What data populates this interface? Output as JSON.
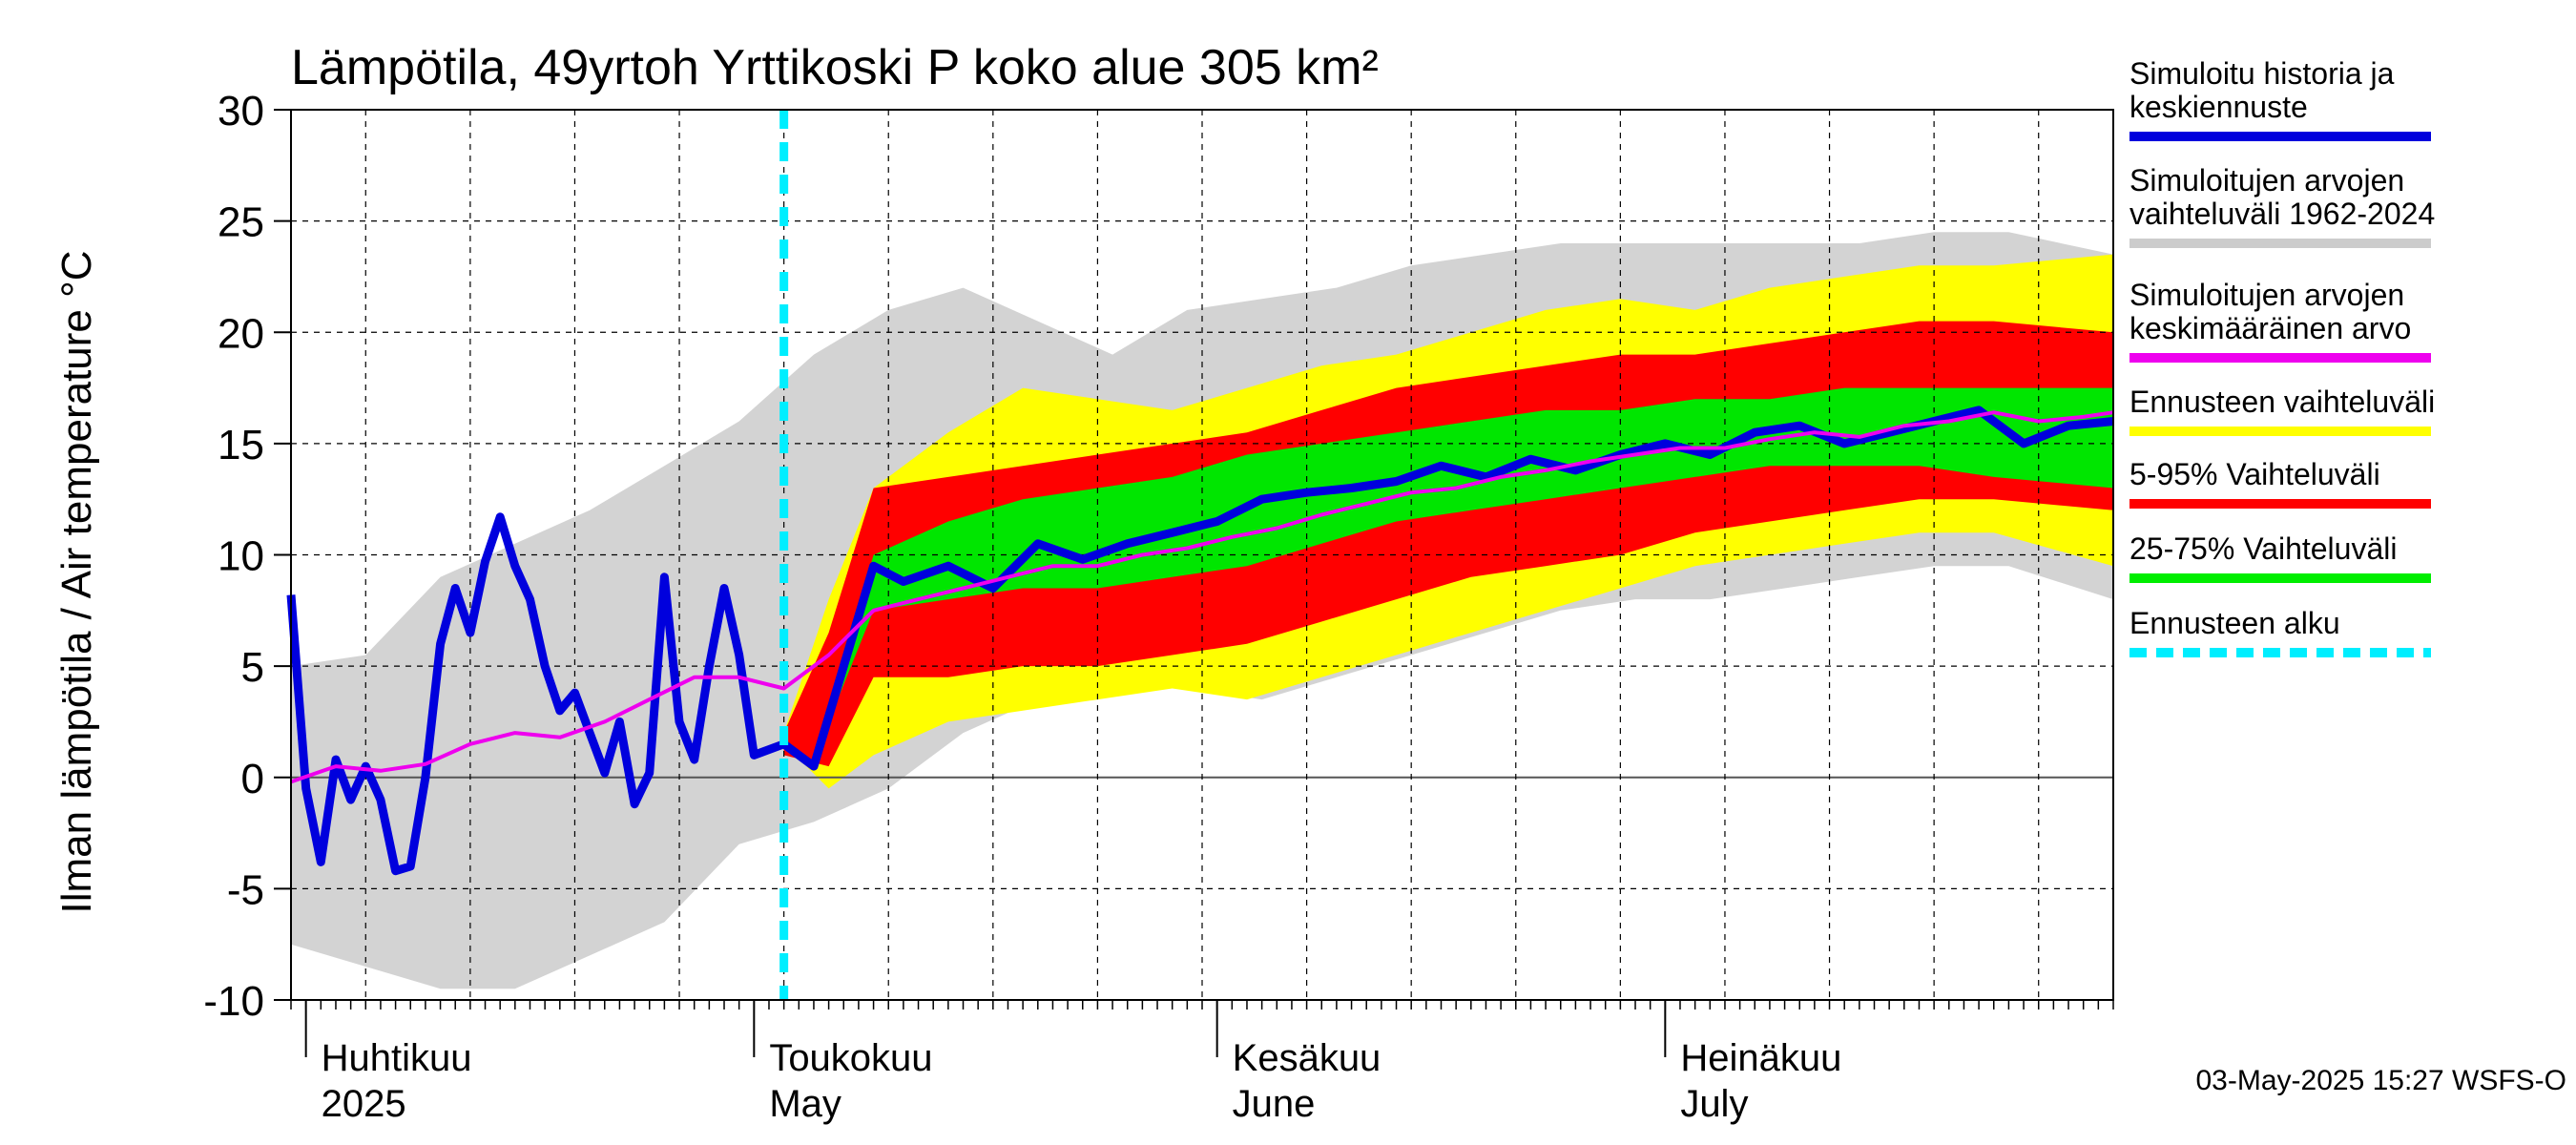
{
  "chart_data": {
    "type": "area",
    "title": "Lämpötila, 49yrtoh Yrttikoski P koko alue 305 km²",
    "ylabel": "Ilman lämpötila / Air temperature   °C",
    "ylim": [
      -10,
      30
    ],
    "yticks": [
      "30",
      "25",
      "20",
      "15",
      "10",
      "5",
      "0",
      "-5",
      "-10"
    ],
    "x_start": "2025-03-31",
    "x_end": "2025-07-31",
    "forecast_start": "2025-05-03",
    "months": [
      {
        "fi": "Huhtikuu",
        "en": "2025",
        "date": "2025-04-01"
      },
      {
        "fi": "Toukokuu",
        "en": "May",
        "date": "2025-05-01"
      },
      {
        "fi": "Kesäkuu",
        "en": "June",
        "date": "2025-06-01"
      },
      {
        "fi": "Heinäkuu",
        "en": "July",
        "date": "2025-07-01"
      }
    ],
    "legend": [
      {
        "label1": "Simuloitu historia ja",
        "label2": "keskiennuste",
        "color": "#0000dd",
        "style": "solid"
      },
      {
        "label1": "Simuloitujen arvojen",
        "label2": "vaihteluväli 1962-2024",
        "color": "#cccccc",
        "style": "solid"
      },
      {
        "label1": "Simuloitujen arvojen",
        "label2": "keskimääräinen arvo",
        "color": "#ee00ee",
        "style": "solid"
      },
      {
        "label1": "Ennusteen vaihteluväli",
        "label2": "",
        "color": "#ffff00",
        "style": "solid"
      },
      {
        "label1": "5-95% Vaihteluväli",
        "label2": "",
        "color": "#ff0000",
        "style": "solid"
      },
      {
        "label1": "25-75% Vaihteluväli",
        "label2": "",
        "color": "#00ee00",
        "style": "solid"
      },
      {
        "label1": "Ennusteen alku",
        "label2": "",
        "color": "#00eeff",
        "style": "dashed"
      }
    ],
    "timestamp": "03-May-2025 15:27 WSFS-O",
    "series": [
      {
        "name": "Simuloitu historia ja keskiennuste",
        "key": "sim",
        "x": [
          "2025-03-31",
          "2025-04-01",
          "2025-04-02",
          "2025-04-03",
          "2025-04-04",
          "2025-04-05",
          "2025-04-06",
          "2025-04-07",
          "2025-04-08",
          "2025-04-09",
          "2025-04-10",
          "2025-04-11",
          "2025-04-12",
          "2025-04-13",
          "2025-04-14",
          "2025-04-15",
          "2025-04-16",
          "2025-04-17",
          "2025-04-18",
          "2025-04-19",
          "2025-04-20",
          "2025-04-21",
          "2025-04-22",
          "2025-04-23",
          "2025-04-24",
          "2025-04-25",
          "2025-04-26",
          "2025-04-27",
          "2025-04-28",
          "2025-04-29",
          "2025-04-30",
          "2025-05-01",
          "2025-05-03",
          "2025-05-05",
          "2025-05-07",
          "2025-05-09",
          "2025-05-11",
          "2025-05-14",
          "2025-05-17",
          "2025-05-20",
          "2025-05-23",
          "2025-05-26",
          "2025-05-29",
          "2025-06-01",
          "2025-06-04",
          "2025-06-07",
          "2025-06-10",
          "2025-06-13",
          "2025-06-16",
          "2025-06-19",
          "2025-06-22",
          "2025-06-25",
          "2025-06-28",
          "2025-07-01",
          "2025-07-04",
          "2025-07-07",
          "2025-07-10",
          "2025-07-13",
          "2025-07-16",
          "2025-07-19",
          "2025-07-22",
          "2025-07-25",
          "2025-07-28",
          "2025-07-31"
        ],
        "y": [
          8.2,
          -0.5,
          -3.8,
          0.8,
          -1.0,
          0.5,
          -1.0,
          -4.2,
          -4.0,
          0.0,
          6.0,
          8.5,
          6.5,
          9.7,
          11.7,
          9.5,
          8.0,
          5.0,
          3.0,
          3.8,
          2.0,
          0.2,
          2.5,
          -1.2,
          0.2,
          9.0,
          2.5,
          0.8,
          5.0,
          8.5,
          5.5,
          1.0,
          1.5,
          0.5,
          5.0,
          9.5,
          8.8,
          9.5,
          8.5,
          10.5,
          9.8,
          10.5,
          11.0,
          11.5,
          12.5,
          12.8,
          13.0,
          13.3,
          14.0,
          13.5,
          14.3,
          13.8,
          14.5,
          15.0,
          14.5,
          15.5,
          15.8,
          15.0,
          15.5,
          16.0,
          16.5,
          15.0,
          15.8,
          16.0
        ]
      },
      {
        "name": "Simuloitujen arvojen keskimääräinen arvo",
        "key": "mean",
        "x": [
          "2025-03-31",
          "2025-04-03",
          "2025-04-06",
          "2025-04-09",
          "2025-04-12",
          "2025-04-15",
          "2025-04-18",
          "2025-04-21",
          "2025-04-24",
          "2025-04-27",
          "2025-04-30",
          "2025-05-03",
          "2025-05-06",
          "2025-05-09",
          "2025-05-12",
          "2025-05-15",
          "2025-05-18",
          "2025-05-21",
          "2025-05-24",
          "2025-05-27",
          "2025-05-30",
          "2025-06-02",
          "2025-06-05",
          "2025-06-08",
          "2025-06-11",
          "2025-06-14",
          "2025-06-17",
          "2025-06-20",
          "2025-06-23",
          "2025-06-26",
          "2025-06-29",
          "2025-07-02",
          "2025-07-05",
          "2025-07-08",
          "2025-07-11",
          "2025-07-14",
          "2025-07-17",
          "2025-07-20",
          "2025-07-23",
          "2025-07-26",
          "2025-07-29",
          "2025-07-31"
        ],
        "y": [
          -0.2,
          0.5,
          0.3,
          0.6,
          1.5,
          2.0,
          1.8,
          2.5,
          3.5,
          4.5,
          4.5,
          4.0,
          5.5,
          7.5,
          8.0,
          8.5,
          9.0,
          9.5,
          9.5,
          10.0,
          10.3,
          10.8,
          11.2,
          11.8,
          12.3,
          12.8,
          13.0,
          13.5,
          13.8,
          14.2,
          14.5,
          14.8,
          14.8,
          15.2,
          15.5,
          15.3,
          15.8,
          16.0,
          16.4,
          16.0,
          16.2,
          16.4
        ]
      }
    ],
    "bands": [
      {
        "name": "Simuloitujen arvojen vaihteluväli 1962-2024",
        "key": "hist",
        "x": [
          "2025-03-31",
          "2025-04-05",
          "2025-04-10",
          "2025-04-15",
          "2025-04-20",
          "2025-04-25",
          "2025-04-30",
          "2025-05-05",
          "2025-05-10",
          "2025-05-15",
          "2025-05-20",
          "2025-05-25",
          "2025-05-30",
          "2025-06-04",
          "2025-06-09",
          "2025-06-14",
          "2025-06-19",
          "2025-06-24",
          "2025-06-29",
          "2025-07-04",
          "2025-07-09",
          "2025-07-14",
          "2025-07-19",
          "2025-07-24",
          "2025-07-31"
        ],
        "low": [
          -7.5,
          -8.5,
          -9.5,
          -9.5,
          -8.0,
          -6.5,
          -3.0,
          -2.0,
          -0.5,
          2.0,
          3.5,
          4.0,
          4.0,
          3.5,
          4.5,
          5.5,
          6.5,
          7.5,
          8.0,
          8.0,
          8.5,
          9.0,
          9.5,
          9.5,
          8.0
        ],
        "high": [
          5.0,
          5.5,
          9.0,
          10.5,
          12.0,
          14.0,
          16.0,
          19.0,
          21.0,
          22.0,
          20.5,
          19.0,
          21.0,
          21.5,
          22.0,
          23.0,
          23.5,
          24.0,
          24.0,
          24.0,
          24.0,
          24.0,
          24.5,
          24.5,
          23.5
        ]
      },
      {
        "name": "Ennusteen vaihteluväli",
        "key": "yellow",
        "x": [
          "2025-05-03",
          "2025-05-06",
          "2025-05-09",
          "2025-05-14",
          "2025-05-19",
          "2025-05-24",
          "2025-05-29",
          "2025-06-03",
          "2025-06-08",
          "2025-06-13",
          "2025-06-18",
          "2025-06-23",
          "2025-06-28",
          "2025-07-03",
          "2025-07-08",
          "2025-07-13",
          "2025-07-18",
          "2025-07-23",
          "2025-07-31"
        ],
        "low": [
          1.5,
          -0.5,
          1.0,
          2.5,
          3.0,
          3.5,
          4.0,
          3.5,
          4.5,
          5.5,
          6.5,
          7.5,
          8.5,
          9.5,
          10.0,
          10.5,
          11.0,
          11.0,
          9.5
        ],
        "high": [
          2.0,
          8.0,
          13.0,
          15.5,
          17.5,
          17.0,
          16.5,
          17.5,
          18.5,
          19.0,
          20.0,
          21.0,
          21.5,
          21.0,
          22.0,
          22.5,
          23.0,
          23.0,
          23.5
        ]
      },
      {
        "name": "5-95% Vaihteluväli",
        "key": "red",
        "x": [
          "2025-05-03",
          "2025-05-06",
          "2025-05-09",
          "2025-05-14",
          "2025-05-19",
          "2025-05-24",
          "2025-05-29",
          "2025-06-03",
          "2025-06-08",
          "2025-06-13",
          "2025-06-18",
          "2025-06-23",
          "2025-06-28",
          "2025-07-03",
          "2025-07-08",
          "2025-07-13",
          "2025-07-18",
          "2025-07-23",
          "2025-07-31"
        ],
        "low": [
          1.0,
          0.5,
          4.5,
          4.5,
          5.0,
          5.0,
          5.5,
          6.0,
          7.0,
          8.0,
          9.0,
          9.5,
          10.0,
          11.0,
          11.5,
          12.0,
          12.5,
          12.5,
          12.0
        ],
        "high": [
          2.0,
          6.5,
          13.0,
          13.5,
          14.0,
          14.5,
          15.0,
          15.5,
          16.5,
          17.5,
          18.0,
          18.5,
          19.0,
          19.0,
          19.5,
          20.0,
          20.5,
          20.5,
          20.0
        ]
      },
      {
        "name": "25-75% Vaihteluväli",
        "key": "green",
        "x": [
          "2025-05-06",
          "2025-05-09",
          "2025-05-14",
          "2025-05-19",
          "2025-05-24",
          "2025-05-29",
          "2025-06-03",
          "2025-06-08",
          "2025-06-13",
          "2025-06-18",
          "2025-06-23",
          "2025-06-28",
          "2025-07-03",
          "2025-07-08",
          "2025-07-13",
          "2025-07-18",
          "2025-07-23",
          "2025-07-31"
        ],
        "low": [
          2.5,
          7.5,
          8.0,
          8.5,
          8.5,
          9.0,
          9.5,
          10.5,
          11.5,
          12.0,
          12.5,
          13.0,
          13.5,
          14.0,
          14.0,
          14.0,
          13.5,
          13.0
        ],
        "high": [
          3.0,
          10.0,
          11.5,
          12.5,
          13.0,
          13.5,
          14.5,
          15.0,
          15.5,
          16.0,
          16.5,
          16.5,
          17.0,
          17.0,
          17.5,
          17.5,
          17.5,
          17.5
        ]
      }
    ]
  }
}
